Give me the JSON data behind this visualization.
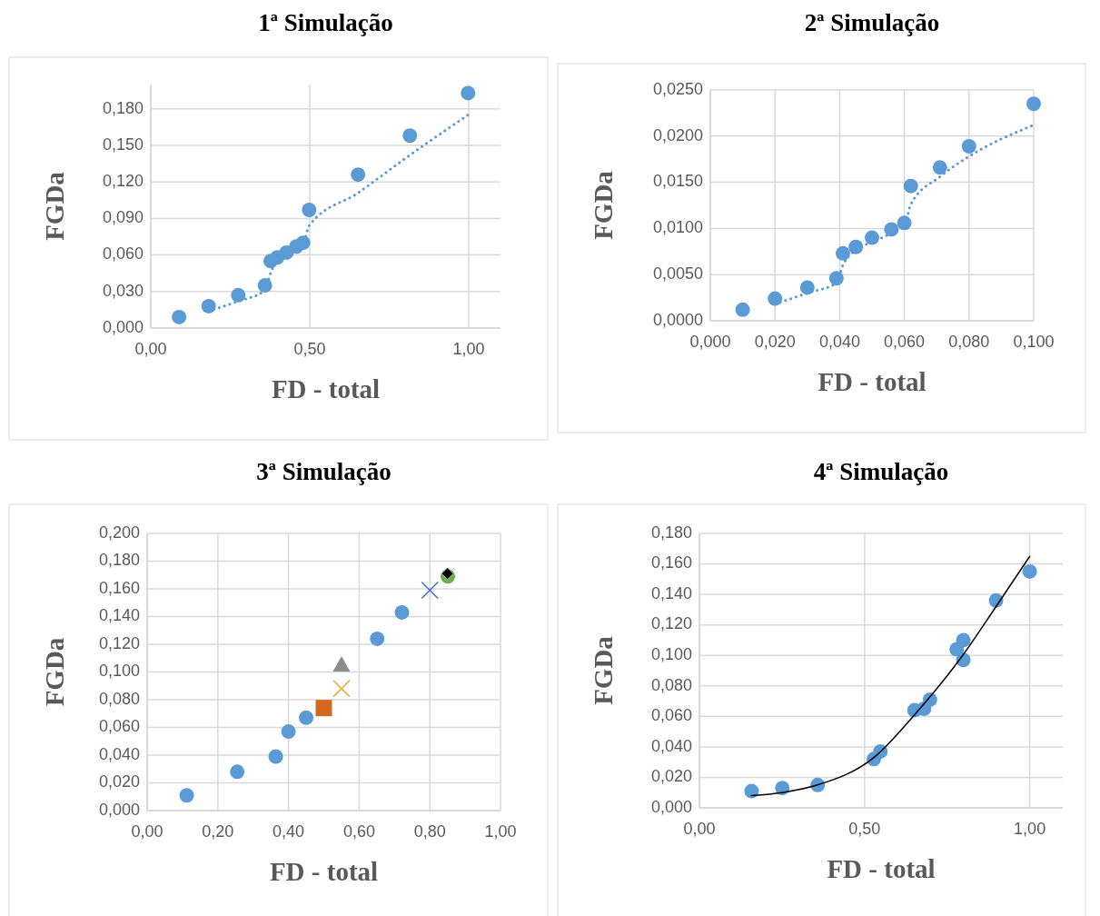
{
  "chart_data": [
    {
      "type": "scatter",
      "title": "1ª Simulação",
      "xlabel": "FD - total",
      "ylabel": "FGDa",
      "xlim": [
        0,
        1.1
      ],
      "xticks": [
        {
          "value": 0,
          "label": "0,00"
        },
        {
          "value": 0.5,
          "label": "0,50"
        },
        {
          "value": 1,
          "label": "1,00"
        }
      ],
      "ylim": [
        0,
        0.2
      ],
      "yticks": [
        {
          "value": 0,
          "label": "0,000"
        },
        {
          "value": 0.03,
          "label": "0,030"
        },
        {
          "value": 0.06,
          "label": "0,060"
        },
        {
          "value": 0.09,
          "label": "0,090"
        },
        {
          "value": 0.12,
          "label": "0,120"
        },
        {
          "value": 0.15,
          "label": "0,150"
        },
        {
          "value": 0.18,
          "label": "0,180"
        }
      ],
      "grid": true,
      "series": [
        {
          "type": "scatter",
          "color": "#5b9bd5",
          "marker": "circle",
          "x": [
            0.089,
            0.182,
            0.275,
            0.359,
            0.377,
            0.398,
            0.427,
            0.458,
            0.479,
            0.498,
            0.652,
            0.815,
            0.998
          ],
          "values": [
            0.009,
            0.018,
            0.027,
            0.035,
            0.055,
            0.058,
            0.062,
            0.067,
            0.07,
            0.097,
            0.126,
            0.158,
            0.193
          ]
        },
        {
          "type": "line",
          "color": "#5b9bd5",
          "line_style": "dotted",
          "marker": "none",
          "x": [
            0.182,
            0.275,
            0.359,
            0.377,
            0.398,
            0.427,
            0.458,
            0.479,
            0.498,
            0.652,
            0.815,
            0.998
          ],
          "values": [
            0.014,
            0.022,
            0.031,
            0.045,
            0.057,
            0.06,
            0.065,
            0.068,
            0.084,
            0.111,
            0.142,
            0.175
          ]
        }
      ]
    },
    {
      "type": "scatter",
      "title": "2ª Simulação",
      "xlabel": "FD - total",
      "ylabel": "FGDa",
      "xlim": [
        0,
        0.1
      ],
      "xticks": [
        {
          "value": 0,
          "label": "0,000"
        },
        {
          "value": 0.02,
          "label": "0,020"
        },
        {
          "value": 0.04,
          "label": "0,040"
        },
        {
          "value": 0.06,
          "label": "0,060"
        },
        {
          "value": 0.08,
          "label": "0,080"
        },
        {
          "value": 0.1,
          "label": "0,100"
        }
      ],
      "ylim": [
        0,
        0.025
      ],
      "yticks": [
        {
          "value": 0,
          "label": "0,0000"
        },
        {
          "value": 0.005,
          "label": "0,0050"
        },
        {
          "value": 0.01,
          "label": "0,0100"
        },
        {
          "value": 0.015,
          "label": "0,0150"
        },
        {
          "value": 0.02,
          "label": "0,0200"
        },
        {
          "value": 0.025,
          "label": "0,0250"
        }
      ],
      "grid": true,
      "series": [
        {
          "type": "scatter",
          "color": "#5b9bd5",
          "marker": "circle",
          "x": [
            0.01,
            0.02,
            0.03,
            0.039,
            0.041,
            0.045,
            0.05,
            0.056,
            0.06,
            0.062,
            0.071,
            0.08,
            0.1
          ],
          "values": [
            0.0012,
            0.0024,
            0.0036,
            0.0046,
            0.0073,
            0.008,
            0.009,
            0.0099,
            0.0106,
            0.0146,
            0.0166,
            0.0189,
            0.0235
          ]
        },
        {
          "type": "line",
          "color": "#5b9bd5",
          "line_style": "dotted",
          "marker": "none",
          "x": [
            0.02,
            0.03,
            0.039,
            0.041,
            0.045,
            0.05,
            0.056,
            0.06,
            0.062,
            0.071,
            0.08,
            0.1
          ],
          "values": [
            0.0018,
            0.003,
            0.0041,
            0.006,
            0.0077,
            0.0085,
            0.0095,
            0.0103,
            0.0126,
            0.0156,
            0.0178,
            0.0212
          ]
        }
      ]
    },
    {
      "type": "scatter",
      "title": "3ª Simulação",
      "xlabel": "FD - total",
      "ylabel": "FGDa",
      "xlim": [
        0,
        1
      ],
      "xticks": [
        {
          "value": 0,
          "label": "0,00"
        },
        {
          "value": 0.2,
          "label": "0,20"
        },
        {
          "value": 0.4,
          "label": "0,40"
        },
        {
          "value": 0.6,
          "label": "0,60"
        },
        {
          "value": 0.8,
          "label": "0,80"
        },
        {
          "value": 1,
          "label": "1,00"
        }
      ],
      "ylim": [
        0,
        0.2
      ],
      "yticks": [
        {
          "value": 0,
          "label": "0,000"
        },
        {
          "value": 0.02,
          "label": "0,020"
        },
        {
          "value": 0.04,
          "label": "0,040"
        },
        {
          "value": 0.06,
          "label": "0,060"
        },
        {
          "value": 0.08,
          "label": "0,080"
        },
        {
          "value": 0.1,
          "label": "0,100"
        },
        {
          "value": 0.12,
          "label": "0,120"
        },
        {
          "value": 0.14,
          "label": "0,140"
        },
        {
          "value": 0.16,
          "label": "0,160"
        },
        {
          "value": 0.18,
          "label": "0,180"
        },
        {
          "value": 0.2,
          "label": "0,200"
        }
      ],
      "grid": true,
      "series": [
        {
          "type": "scatter",
          "color": "#5b9bd5",
          "marker": "circle",
          "x": [
            0.112,
            0.255,
            0.364,
            0.4,
            0.45,
            0.651,
            0.721
          ],
          "values": [
            0.011,
            0.028,
            0.039,
            0.057,
            0.067,
            0.124,
            0.143
          ]
        },
        {
          "type": "scatter",
          "color": "#d2691e",
          "marker": "square",
          "x": [
            0.5
          ],
          "values": [
            0.074
          ]
        },
        {
          "type": "scatter",
          "color": "#e6ac2e",
          "marker": "cross",
          "x": [
            0.55
          ],
          "values": [
            0.088
          ]
        },
        {
          "type": "scatter",
          "color": "#8c8c8c",
          "marker": "triangle",
          "x": [
            0.55
          ],
          "values": [
            0.105
          ]
        },
        {
          "type": "scatter",
          "color": "#4472c4",
          "marker": "cross",
          "x": [
            0.8
          ],
          "values": [
            0.159
          ]
        },
        {
          "type": "scatter",
          "color": "#70ad47",
          "marker": "circle",
          "x": [
            0.851
          ],
          "values": [
            0.169
          ]
        },
        {
          "type": "scatter",
          "color": "#000000",
          "marker": "diamond",
          "x": [
            0.85
          ],
          "values": [
            0.171
          ]
        }
      ]
    },
    {
      "type": "scatter",
      "title": "4ª Simulação",
      "xlabel": "FD - total",
      "ylabel": "FGDa",
      "xlim": [
        0,
        1.1
      ],
      "xticks": [
        {
          "value": 0,
          "label": "0,00"
        },
        {
          "value": 0.5,
          "label": "0,50"
        },
        {
          "value": 1,
          "label": "1,00"
        }
      ],
      "ylim": [
        0,
        0.18
      ],
      "yticks": [
        {
          "value": 0,
          "label": "0,000"
        },
        {
          "value": 0.02,
          "label": "0,020"
        },
        {
          "value": 0.04,
          "label": "0,040"
        },
        {
          "value": 0.06,
          "label": "0,060"
        },
        {
          "value": 0.08,
          "label": "0,080"
        },
        {
          "value": 0.1,
          "label": "0,100"
        },
        {
          "value": 0.12,
          "label": "0,120"
        },
        {
          "value": 0.14,
          "label": "0,140"
        },
        {
          "value": 0.16,
          "label": "0,160"
        },
        {
          "value": 0.18,
          "label": "0,180"
        }
      ],
      "grid": true,
      "series": [
        {
          "type": "scatter",
          "color": "#5b9bd5",
          "marker": "circle",
          "x": [
            0.158,
            0.251,
            0.358,
            0.528,
            0.548,
            0.651,
            0.68,
            0.698,
            0.779,
            0.799,
            0.799,
            0.898,
            1.0
          ],
          "values": [
            0.011,
            0.013,
            0.015,
            0.032,
            0.037,
            0.064,
            0.065,
            0.071,
            0.104,
            0.11,
            0.097,
            0.136,
            0.155
          ]
        },
        {
          "type": "line",
          "color": "#000000",
          "line_style": "solid",
          "marker": "none",
          "x": [
            0.158,
            0.25,
            0.357,
            0.528,
            0.651,
            0.797,
            0.898,
            1.0
          ],
          "values": [
            0.008,
            0.01,
            0.015,
            0.033,
            0.061,
            0.1,
            0.132,
            0.165
          ]
        }
      ]
    }
  ]
}
